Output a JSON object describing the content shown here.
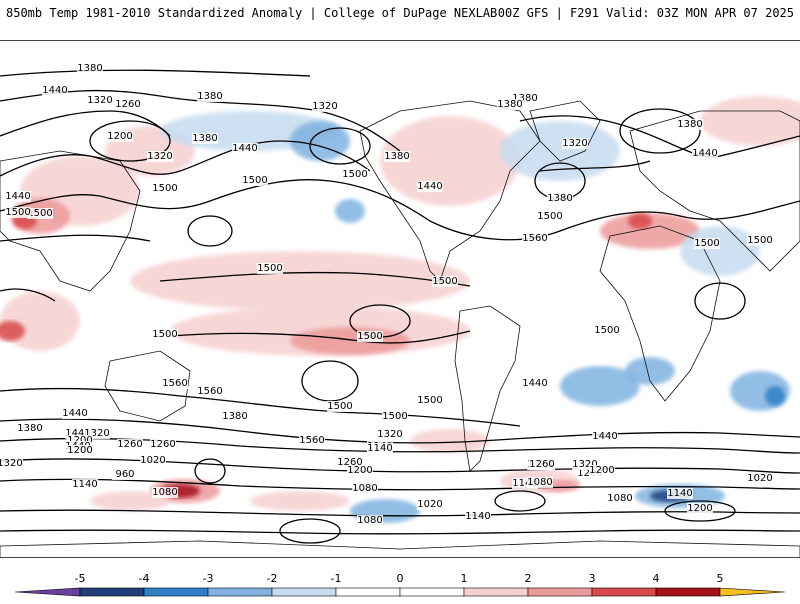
{
  "header": {
    "title": "850mb Temp 1981-2010 Standardized Anomaly | College of DuPage NEXLAB",
    "run_info": "00Z GFS | F291 Valid: 03Z MON APR 07 2025"
  },
  "colorbar": {
    "ticks": [
      "-5",
      "-4",
      "-3",
      "-2",
      "-1",
      "0",
      "1",
      "2",
      "3",
      "4",
      "5"
    ],
    "colors": {
      "neg5": "#6b3fa0",
      "neg4": "#1f3f7a",
      "neg3": "#2f80c8",
      "neg2": "#7fb2e0",
      "neg1": "#c6dcf0",
      "zero": "#ffffff",
      "pos1": "#f6d0d0",
      "pos2": "#ec9a9a",
      "pos3": "#d84a4a",
      "pos4": "#a8101a",
      "pos5": "#6e0008",
      "extreme": "#f0c020"
    }
  },
  "contours": {
    "labels": [
      "1380",
      "1440",
      "1320",
      "1260",
      "1380",
      "1320",
      "1200",
      "1380",
      "1440",
      "1320",
      "1500",
      "1500",
      "1380",
      "1440",
      "1500",
      "1440",
      "1500",
      "1380",
      "1380",
      "1320",
      "1380",
      "1440",
      "1380",
      "1500",
      "1560",
      "1500",
      "1500",
      "1500",
      "1500",
      "1500",
      "1500",
      "1500",
      "1500",
      "1440",
      "1560",
      "1560",
      "1500",
      "1500",
      "1500",
      "1440",
      "1440",
      "1380",
      "1440",
      "1320",
      "1380",
      "1320",
      "1200",
      "1260",
      "1560",
      "1140",
      "1440",
      "1320",
      "1200",
      "1260",
      "1200",
      "1320",
      "1260",
      "1140",
      "1020",
      "960",
      "1080",
      "1140",
      "1080",
      "1260",
      "1320",
      "1200",
      "1140",
      "1200",
      "1080",
      "1080",
      "1020",
      "1140",
      "1080",
      "1140",
      "1020",
      "1200"
    ]
  }
}
